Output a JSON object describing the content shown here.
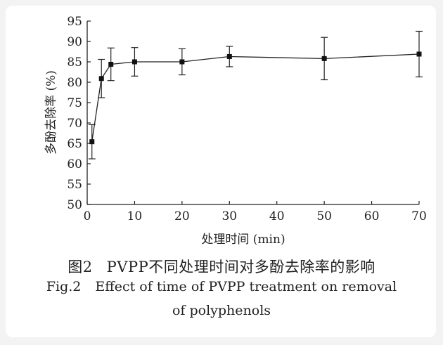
{
  "chart_data": {
    "type": "line",
    "xlabel": "处理时间 (min)",
    "ylabel": "多酚去除率 (%)",
    "xlim": [
      0,
      70
    ],
    "ylim": [
      50,
      95
    ],
    "x_ticks": [
      0,
      10,
      20,
      30,
      40,
      50,
      60,
      70
    ],
    "y_ticks": [
      50,
      55,
      60,
      65,
      70,
      75,
      80,
      85,
      90,
      95
    ],
    "series": [
      {
        "x": [
          1,
          3,
          5,
          10,
          20,
          30,
          50,
          70
        ],
        "y": [
          65.4,
          80.9,
          84.4,
          85.0,
          85.0,
          86.3,
          85.8,
          86.9
        ],
        "error": [
          4.2,
          4.7,
          4.0,
          3.5,
          3.2,
          2.5,
          5.2,
          5.6
        ]
      }
    ],
    "grid": false,
    "legend": "none"
  },
  "caption": {
    "cn_number": "图2",
    "cn_text": "PVPP不同处理时间对多酚去除率的影响",
    "en_number": "Fig.2",
    "en_text_line1": "Effect of time of PVPP treatment on removal",
    "en_text_line2": "of polyphenols"
  }
}
